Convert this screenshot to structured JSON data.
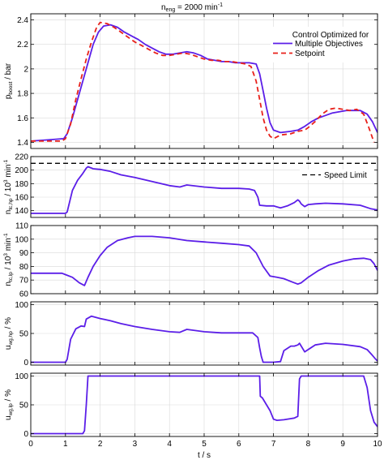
{
  "chart_data": {
    "type": "line",
    "title": "n_eng = 2000 min⁻¹",
    "title_parts": {
      "main": "n",
      "sub": "eng",
      "rest": " = 2000 min",
      "sup": "-1"
    },
    "xlabel": "t / s",
    "xlim": [
      0,
      10
    ],
    "xticks": [
      "0",
      "1",
      "2",
      "3",
      "4",
      "5",
      "6",
      "7",
      "8",
      "9",
      "10"
    ],
    "grid": true,
    "colors": {
      "optimized": "#5b1ee8",
      "setpoint": "#e8201a",
      "limit": "#000000"
    },
    "panels": [
      {
        "id": "p_boost",
        "ylabel": "p_boost / bar",
        "ylabel_parts": {
          "main": "p",
          "sub": "boost",
          "rest": " / bar"
        },
        "ylim": [
          1.35,
          2.45
        ],
        "yticks": [
          "1.4",
          "1.6",
          "1.8",
          "2",
          "2.2",
          "2.4"
        ],
        "legend": {
          "position": "top-right",
          "title": "Control Optimized for",
          "entries": [
            "Multiple Objectives",
            "Setpoint"
          ]
        },
        "series": [
          {
            "name": "Multiple Objectives",
            "style": "solid",
            "color": "optimized",
            "x": [
              0,
              0.5,
              0.95,
              1.05,
              1.2,
              1.35,
              1.5,
              1.65,
              1.8,
              1.95,
              2.1,
              2.3,
              2.5,
              2.7,
              2.9,
              3.1,
              3.3,
              3.5,
              3.7,
              3.9,
              4.1,
              4.3,
              4.5,
              4.7,
              4.9,
              5.1,
              5.3,
              5.5,
              5.7,
              5.9,
              6.1,
              6.3,
              6.5,
              6.6,
              6.7,
              6.8,
              6.9,
              7.0,
              7.2,
              7.5,
              7.7,
              7.9,
              8.1,
              8.3,
              8.5,
              8.7,
              8.9,
              9.1,
              9.3,
              9.5,
              9.7,
              9.85,
              10.0
            ],
            "y": [
              1.41,
              1.42,
              1.43,
              1.47,
              1.6,
              1.75,
              1.9,
              2.05,
              2.2,
              2.3,
              2.35,
              2.36,
              2.34,
              2.3,
              2.27,
              2.24,
              2.2,
              2.17,
              2.14,
              2.12,
              2.12,
              2.13,
              2.14,
              2.13,
              2.11,
              2.08,
              2.07,
              2.06,
              2.06,
              2.05,
              2.05,
              2.05,
              2.04,
              1.96,
              1.82,
              1.68,
              1.56,
              1.5,
              1.48,
              1.49,
              1.5,
              1.53,
              1.57,
              1.6,
              1.62,
              1.64,
              1.65,
              1.66,
              1.66,
              1.66,
              1.63,
              1.57,
              1.48
            ]
          },
          {
            "name": "Setpoint",
            "style": "dashed",
            "color": "setpoint",
            "x": [
              0,
              0.9,
              1.0,
              1.15,
              1.3,
              1.45,
              1.6,
              1.75,
              1.9,
              2.0,
              2.2,
              2.4,
              2.6,
              2.8,
              3.0,
              3.2,
              3.4,
              3.6,
              3.8,
              4.0,
              4.2,
              4.4,
              4.6,
              4.8,
              5.0,
              5.2,
              5.4,
              5.6,
              5.8,
              6.0,
              6.2,
              6.35,
              6.5,
              6.6,
              6.7,
              6.8,
              6.9,
              7.0,
              7.2,
              7.5,
              7.7,
              7.9,
              8.0,
              8.2,
              8.4,
              8.6,
              8.8,
              9.0,
              9.2,
              9.4,
              9.6,
              9.75,
              9.9
            ],
            "y": [
              1.41,
              1.41,
              1.43,
              1.55,
              1.75,
              1.92,
              2.08,
              2.22,
              2.34,
              2.38,
              2.37,
              2.34,
              2.3,
              2.26,
              2.22,
              2.19,
              2.16,
              2.13,
              2.11,
              2.11,
              2.12,
              2.13,
              2.12,
              2.1,
              2.08,
              2.07,
              2.07,
              2.06,
              2.06,
              2.05,
              2.04,
              2.02,
              1.9,
              1.75,
              1.6,
              1.5,
              1.45,
              1.43,
              1.46,
              1.47,
              1.49,
              1.5,
              1.52,
              1.57,
              1.63,
              1.67,
              1.68,
              1.67,
              1.66,
              1.67,
              1.63,
              1.52,
              1.4
            ]
          }
        ]
      },
      {
        "id": "n_tc_hp",
        "ylabel": "n_tc,hp / 10³ min⁻¹",
        "ylabel_parts": {
          "main": "n",
          "sub": "tc,hp",
          "rest": " / 10",
          "sup": "3",
          "rest2": " min",
          "sup2": "-1"
        },
        "ylim": [
          130,
          220
        ],
        "yticks": [
          "140",
          "160",
          "180",
          "200",
          "220"
        ],
        "legend": {
          "position": "top-right",
          "entries": [
            "Speed Limit"
          ]
        },
        "series": [
          {
            "name": "Speed Limit",
            "style": "dashed",
            "color": "limit",
            "x": [
              0,
              10
            ],
            "y": [
              210,
              210
            ]
          },
          {
            "name": "Multiple Objectives",
            "style": "solid",
            "color": "optimized",
            "x": [
              0,
              0.5,
              1.0,
              1.05,
              1.2,
              1.35,
              1.5,
              1.6,
              1.65,
              1.8,
              2.0,
              2.3,
              2.6,
              3.0,
              3.5,
              4.0,
              4.3,
              4.5,
              5.0,
              5.5,
              6.0,
              6.3,
              6.45,
              6.55,
              6.6,
              6.8,
              7.0,
              7.2,
              7.4,
              7.6,
              7.7,
              7.75,
              7.8,
              7.9,
              8.0,
              8.2,
              8.5,
              9.0,
              9.5,
              9.8,
              10.0
            ],
            "y": [
              136,
              136,
              136,
              138,
              170,
              185,
              195,
              203,
              205,
              202,
              201,
              198,
              193,
              189,
              183,
              177,
              175,
              178,
              175,
              173,
              173,
              172,
              170,
              160,
              148,
              147,
              147,
              144,
              147,
              152,
              156,
              154,
              150,
              146,
              149,
              150,
              151,
              150,
              148,
              143,
              141
            ]
          }
        ]
      },
      {
        "id": "n_tc_lp",
        "ylabel": "n_tc,lp / 10³ min⁻¹",
        "ylabel_parts": {
          "main": "n",
          "sub": "tc,lp",
          "rest": " / 10",
          "sup": "3",
          "rest2": " min",
          "sup2": "-1"
        },
        "ylim": [
          60,
          110
        ],
        "yticks": [
          "60",
          "70",
          "80",
          "90",
          "100",
          "110"
        ],
        "series": [
          {
            "name": "Multiple Objectives",
            "style": "solid",
            "color": "optimized",
            "x": [
              0,
              0.5,
              0.9,
              1.0,
              1.2,
              1.4,
              1.55,
              1.65,
              1.8,
              2.0,
              2.2,
              2.5,
              2.8,
              3.0,
              3.5,
              4.0,
              4.5,
              5.0,
              5.5,
              6.0,
              6.3,
              6.5,
              6.7,
              6.9,
              7.1,
              7.3,
              7.5,
              7.7,
              7.8,
              8.0,
              8.3,
              8.6,
              9.0,
              9.3,
              9.6,
              9.8,
              9.9,
              10.0
            ],
            "y": [
              75,
              75,
              75,
              74,
              72,
              68,
              66,
              72,
              80,
              88,
              94,
              99,
              101,
              102,
              102,
              101,
              99,
              98,
              97,
              96,
              95,
              90,
              80,
              73,
              72,
              71,
              69,
              67,
              68,
              72,
              77,
              81,
              84,
              85.5,
              86,
              85,
              82,
              77
            ]
          }
        ]
      },
      {
        "id": "u_wg_hp",
        "ylabel": "u_wg,hp / %",
        "ylabel_parts": {
          "main": "u",
          "sub": "wg,hp",
          "rest": " / %"
        },
        "ylim": [
          -5,
          105
        ],
        "yticks": [
          "0",
          "50",
          "100"
        ],
        "series": [
          {
            "name": "Multiple Objectives",
            "style": "solid",
            "color": "optimized",
            "x": [
              0,
              0.95,
              1.0,
              1.05,
              1.15,
              1.3,
              1.45,
              1.55,
              1.6,
              1.75,
              2.0,
              2.3,
              2.6,
              3.0,
              3.5,
              4.0,
              4.3,
              4.5,
              5.0,
              5.5,
              6.0,
              6.4,
              6.55,
              6.6,
              6.65,
              6.7,
              6.75,
              6.9,
              7.0,
              7.2,
              7.3,
              7.5,
              7.6,
              7.7,
              7.75,
              7.9,
              8.0,
              8.2,
              8.5,
              9.0,
              9.5,
              9.7,
              9.85,
              9.95,
              10.0
            ],
            "y": [
              0,
              0,
              0,
              5,
              40,
              58,
              63,
              62,
              75,
              80,
              76,
              72,
              67,
              62,
              57,
              53,
              52,
              57,
              53,
              51,
              51,
              51,
              43,
              25,
              10,
              0,
              0,
              0,
              0,
              1,
              20,
              28,
              28,
              30,
              33,
              18,
              22,
              30,
              33,
              31,
              27,
              22,
              12,
              5,
              2
            ]
          }
        ]
      },
      {
        "id": "u_wg_lp",
        "ylabel": "u_wg,lp / %",
        "ylabel_parts": {
          "main": "u",
          "sub": "wg,lp",
          "rest": " / %"
        },
        "ylim": [
          -5,
          105
        ],
        "yticks": [
          "0",
          "50",
          "100"
        ],
        "series": [
          {
            "name": "Multiple Objectives",
            "style": "solid",
            "color": "optimized",
            "x": [
              0,
              1.5,
              1.55,
              1.6,
              1.65,
              1.7,
              2.0,
              3.0,
              4.0,
              5.0,
              6.0,
              6.5,
              6.6,
              6.62,
              6.68,
              6.8,
              6.9,
              7.0,
              7.1,
              7.3,
              7.5,
              7.6,
              7.7,
              7.75,
              7.8,
              8.0,
              9.0,
              9.6,
              9.7,
              9.8,
              9.9,
              10.0
            ],
            "y": [
              0,
              0,
              5,
              50,
              100,
              100,
              100,
              100,
              100,
              100,
              100,
              100,
              100,
              65,
              62,
              50,
              40,
              25,
              23,
              24,
              26,
              27,
              30,
              95,
              100,
              100,
              100,
              100,
              80,
              40,
              20,
              12
            ]
          }
        ]
      }
    ]
  }
}
